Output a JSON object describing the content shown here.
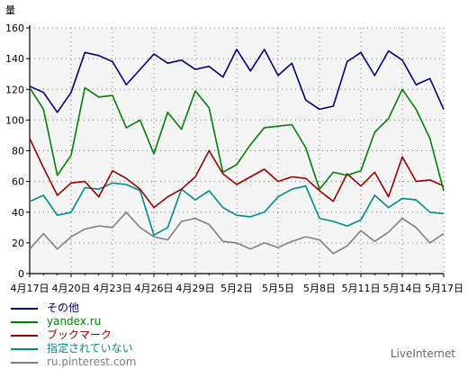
{
  "chart_data": {
    "type": "line",
    "ylabel": "量",
    "ylim": [
      0,
      160
    ],
    "yticks": [
      0,
      20,
      40,
      60,
      80,
      100,
      120,
      140,
      160
    ],
    "grid": true,
    "legend_position": "bottom-left",
    "x_tick_labels": [
      "4月17日",
      "4月20日",
      "4月23日",
      "4月26日",
      "4月29日",
      "5月2日",
      "5月5日",
      "5月8日",
      "5月11日",
      "5月14日",
      "5月17日"
    ],
    "x_tick_index": [
      0,
      3,
      6,
      9,
      12,
      15,
      18,
      21,
      24,
      27,
      30
    ],
    "series": [
      {
        "name": "その他",
        "color": "#00007f",
        "values": [
          122,
          118,
          105,
          118,
          144,
          142,
          138,
          123,
          133,
          143,
          137,
          139,
          133,
          135,
          128,
          146,
          132,
          146,
          129,
          137,
          113,
          107,
          109,
          138,
          144,
          129,
          145,
          139,
          123,
          127,
          107
        ]
      },
      {
        "name": "yandex.ru",
        "color": "#008000",
        "values": [
          121,
          107,
          64,
          77,
          121,
          115,
          116,
          95,
          100,
          78,
          105,
          94,
          119,
          108,
          66,
          71,
          84,
          95,
          96,
          97,
          82,
          55,
          66,
          64,
          67,
          92,
          101,
          120,
          107,
          88,
          54
        ]
      },
      {
        "name": "ブックマーク",
        "color": "#990000",
        "values": [
          88,
          69,
          51,
          59,
          60,
          50,
          67,
          62,
          55,
          43,
          50,
          55,
          63,
          80,
          65,
          58,
          63,
          68,
          60,
          63,
          62,
          54,
          47,
          65,
          57,
          66,
          50,
          76,
          60,
          61,
          57
        ]
      },
      {
        "name": "指定されていない",
        "color": "#008b8b",
        "values": [
          47,
          51,
          38,
          40,
          56,
          55,
          59,
          58,
          54,
          25,
          30,
          55,
          48,
          54,
          43,
          38,
          37,
          40,
          50,
          55,
          57,
          36,
          34,
          31,
          35,
          51,
          43,
          49,
          48,
          40,
          39
        ]
      },
      {
        "name": "ru.pinterest.com",
        "color": "#808080",
        "values": [
          16,
          26,
          16,
          24,
          29,
          31,
          30,
          40,
          30,
          24,
          22,
          34,
          36,
          32,
          21,
          20,
          16,
          20,
          17,
          21,
          24,
          22,
          13,
          18,
          28,
          21,
          27,
          36,
          30,
          20,
          26
        ]
      }
    ]
  },
  "footer": {
    "brand": "LiveInternet"
  }
}
